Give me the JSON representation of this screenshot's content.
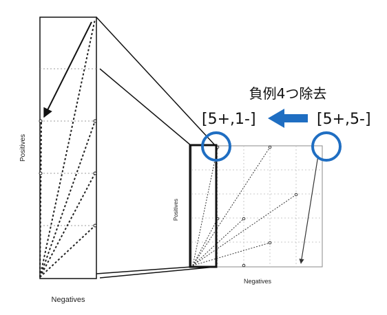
{
  "left_panel": {
    "xlabel": "Negatives",
    "ylabel": "Positives"
  },
  "right_panel": {
    "xlabel": "Negatives",
    "ylabel": "Positives"
  },
  "annotation": {
    "title": "負例4つ除去",
    "from_label": "[5+,5-]",
    "to_label": "[5+,1-]",
    "arrow_color": "#1f6ec2",
    "circle_color": "#1f6ec2"
  }
}
